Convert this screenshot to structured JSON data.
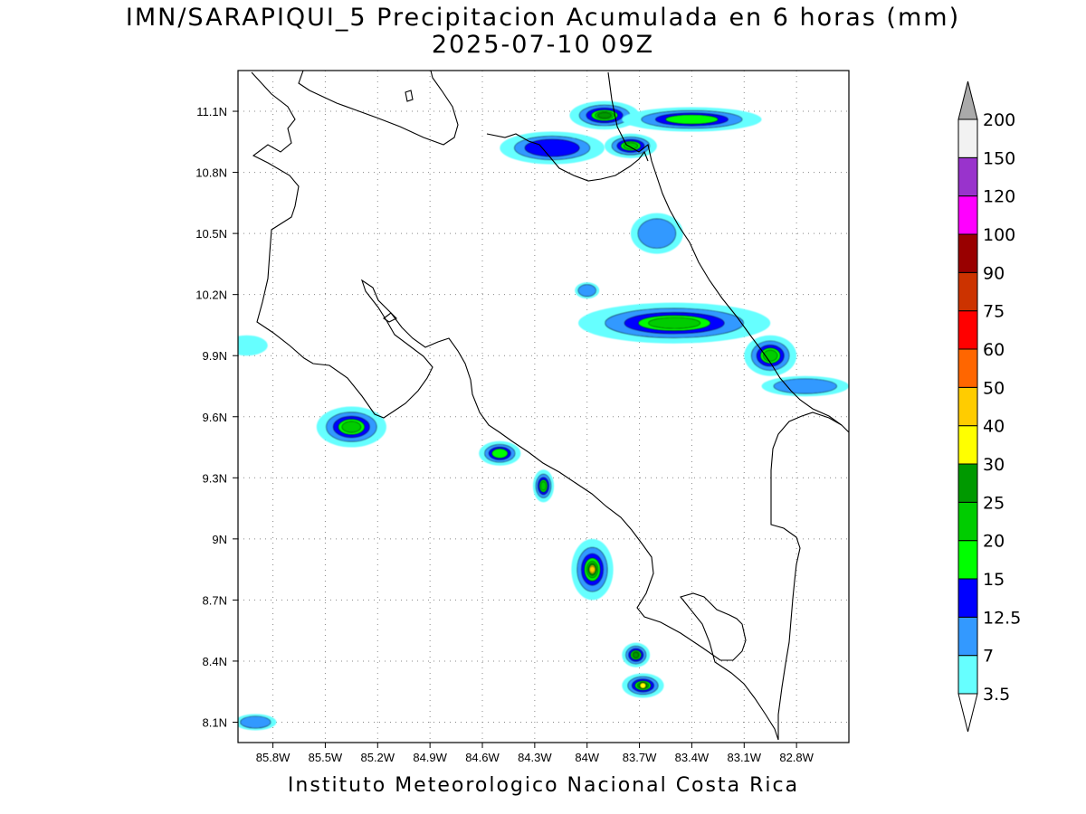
{
  "title": {
    "line1": "IMN/SARAPIQUI_5 Precipitacion Acumulada en 6 horas (mm)",
    "line2": "2025-07-10 09Z"
  },
  "footer": "Instituto Meteorologico Nacional Costa Rica",
  "map": {
    "lon_range": [
      -86.0,
      -82.5
    ],
    "lat_range": [
      8.0,
      11.3
    ],
    "x_ticks": [
      {
        "value": -85.8,
        "label": "85.8W"
      },
      {
        "value": -85.5,
        "label": "85.5W"
      },
      {
        "value": -85.2,
        "label": "85.2W"
      },
      {
        "value": -84.9,
        "label": "84.9W"
      },
      {
        "value": -84.6,
        "label": "84.6W"
      },
      {
        "value": -84.3,
        "label": "84.3W"
      },
      {
        "value": -84.0,
        "label": "84W"
      },
      {
        "value": -83.7,
        "label": "83.7W"
      },
      {
        "value": -83.4,
        "label": "83.4W"
      },
      {
        "value": -83.1,
        "label": "83.1W"
      },
      {
        "value": -82.8,
        "label": "82.8W"
      }
    ],
    "y_ticks": [
      {
        "value": 11.1,
        "label": "11.1N"
      },
      {
        "value": 10.8,
        "label": "10.8N"
      },
      {
        "value": 10.5,
        "label": "10.5N"
      },
      {
        "value": 10.2,
        "label": "10.2N"
      },
      {
        "value": 9.9,
        "label": "9.9N"
      },
      {
        "value": 9.6,
        "label": "9.6N"
      },
      {
        "value": 9.3,
        "label": "9.3N"
      },
      {
        "value": 9.0,
        "label": "9N"
      },
      {
        "value": 8.7,
        "label": "8.7N"
      },
      {
        "value": 8.4,
        "label": "8.4N"
      },
      {
        "value": 8.1,
        "label": "8.1N"
      }
    ],
    "grid": "dotted"
  },
  "colorbar": {
    "units": "mm",
    "levels": [
      "3.5",
      "7",
      "12.5",
      "15",
      "20",
      "25",
      "30",
      "40",
      "50",
      "60",
      "75",
      "90",
      "100",
      "120",
      "150",
      "200"
    ],
    "colors": [
      "#66ffff",
      "#3399ff",
      "#0000ff",
      "#00ff00",
      "#00cc00",
      "#009900",
      "#ffff00",
      "#ffcc00",
      "#ff6600",
      "#ff0000",
      "#cc3300",
      "#990000",
      "#ff00ff",
      "#9933cc",
      "#f2f2f2",
      "#aaaaaa"
    ],
    "below_color": "#ffffff",
    "above_color": "#aaaaaa"
  },
  "chart_data": {
    "type": "heatmap",
    "title": "IMN/SARAPIQUI_5 Precipitacion Acumulada en 6 horas (mm)",
    "xlabel": "",
    "ylabel": "",
    "xlim": [
      -86.0,
      -82.5
    ],
    "ylim": [
      8.0,
      11.3
    ],
    "cells": [
      {
        "lon": -83.9,
        "lat": 11.08,
        "rlon": 0.2,
        "rlat": 0.07,
        "level": 5
      },
      {
        "lon": -83.4,
        "lat": 11.06,
        "rlon": 0.4,
        "rlat": 0.06,
        "level": 3
      },
      {
        "lon": -84.2,
        "lat": 10.92,
        "rlon": 0.3,
        "rlat": 0.08,
        "level": 2
      },
      {
        "lon": -83.75,
        "lat": 10.93,
        "rlon": 0.15,
        "rlat": 0.06,
        "level": 4
      },
      {
        "lon": -83.6,
        "lat": 10.5,
        "rlon": 0.15,
        "rlat": 0.1,
        "level": 1
      },
      {
        "lon": -83.5,
        "lat": 10.06,
        "rlon": 0.55,
        "rlat": 0.1,
        "level": 4
      },
      {
        "lon": -82.95,
        "lat": 9.9,
        "rlon": 0.15,
        "rlat": 0.1,
        "level": 4
      },
      {
        "lon": -82.75,
        "lat": 9.75,
        "rlon": 0.25,
        "rlat": 0.05,
        "level": 1
      },
      {
        "lon": -85.35,
        "lat": 9.55,
        "rlon": 0.2,
        "rlat": 0.1,
        "level": 4
      },
      {
        "lon": -84.5,
        "lat": 9.42,
        "rlon": 0.12,
        "rlat": 0.06,
        "level": 3
      },
      {
        "lon": -84.25,
        "lat": 9.26,
        "rlon": 0.06,
        "rlat": 0.08,
        "level": 4
      },
      {
        "lon": -83.97,
        "lat": 8.85,
        "rlon": 0.12,
        "rlat": 0.15,
        "level": 7
      },
      {
        "lon": -83.72,
        "lat": 8.43,
        "rlon": 0.08,
        "rlat": 0.06,
        "level": 5
      },
      {
        "lon": -83.68,
        "lat": 8.28,
        "rlon": 0.12,
        "rlat": 0.06,
        "level": 6
      },
      {
        "lon": -84.0,
        "lat": 10.22,
        "rlon": 0.07,
        "rlat": 0.04,
        "level": 1
      },
      {
        "lon": -85.95,
        "lat": 9.95,
        "rlon": 0.12,
        "rlat": 0.05,
        "level": 0
      },
      {
        "lon": -85.9,
        "lat": 8.1,
        "rlon": 0.12,
        "rlat": 0.04,
        "level": 1
      }
    ]
  }
}
